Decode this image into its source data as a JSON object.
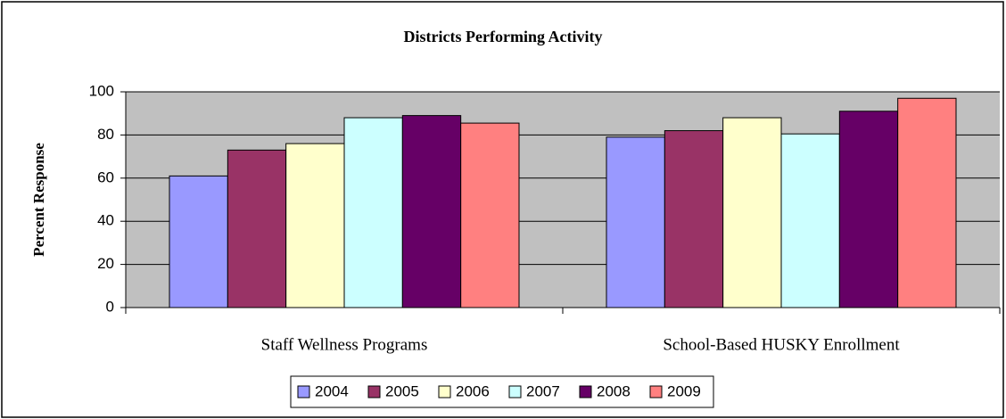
{
  "chart_data": {
    "type": "bar",
    "title": "Districts Performing Activity",
    "y_label": "Percent Response",
    "categories": [
      "Staff Wellness Programs",
      "School-Based HUSKY Enrollment"
    ],
    "series": [
      {
        "name": "2004",
        "color": "#9999ff",
        "values": [
          61,
          79
        ]
      },
      {
        "name": "2005",
        "color": "#993366",
        "values": [
          73,
          82
        ]
      },
      {
        "name": "2006",
        "color": "#ffffcc",
        "values": [
          76,
          88
        ]
      },
      {
        "name": "2007",
        "color": "#ccffff",
        "values": [
          88,
          80.5
        ]
      },
      {
        "name": "2008",
        "color": "#660066",
        "values": [
          89,
          91
        ]
      },
      {
        "name": "2009",
        "color": "#ff8080",
        "values": [
          85.5,
          97
        ]
      }
    ],
    "ylim": [
      0,
      100
    ],
    "yticks": [
      0,
      20,
      40,
      60,
      80,
      100
    ],
    "grid": true,
    "legend": "bottom"
  }
}
